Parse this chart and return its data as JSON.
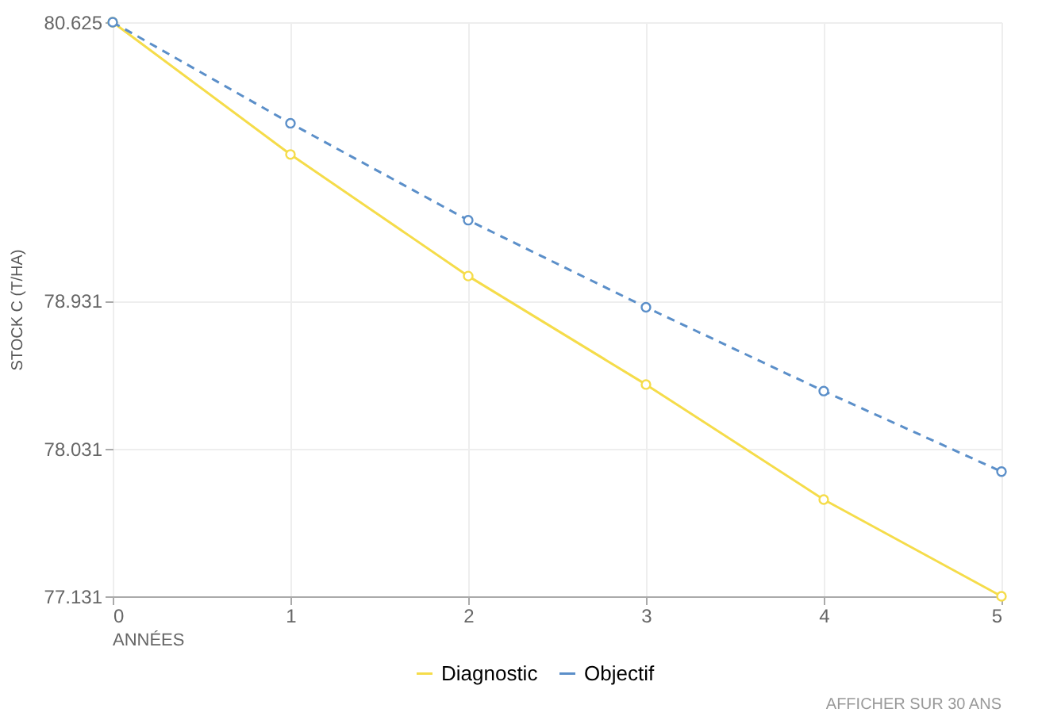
{
  "chart_data": {
    "type": "line",
    "xlabel": "ANNÉES",
    "ylabel": "STOCK C (T/HA)",
    "x": [
      0,
      1,
      2,
      3,
      4,
      5
    ],
    "series": [
      {
        "name": "Diagnostic",
        "color": "#f5dc4a",
        "line_style": "solid",
        "values": [
          80.625,
          79.82,
          79.08,
          78.42,
          77.72,
          77.131
        ]
      },
      {
        "name": "Objectif",
        "color": "#5b8fc9",
        "line_style": "dashed",
        "values": [
          80.625,
          80.01,
          79.42,
          78.89,
          78.38,
          77.89
        ]
      }
    ],
    "xlim": [
      0,
      5
    ],
    "xticks": [
      0,
      1,
      2,
      3,
      4,
      5
    ],
    "ylim": [
      77.131,
      80.625
    ],
    "yticks": [
      77.131,
      78.031,
      78.931,
      80.625
    ],
    "grid": true,
    "legend": "bottom",
    "marker": "circle",
    "annotations": [
      "AFFICHER SUR 30 ANS"
    ]
  }
}
